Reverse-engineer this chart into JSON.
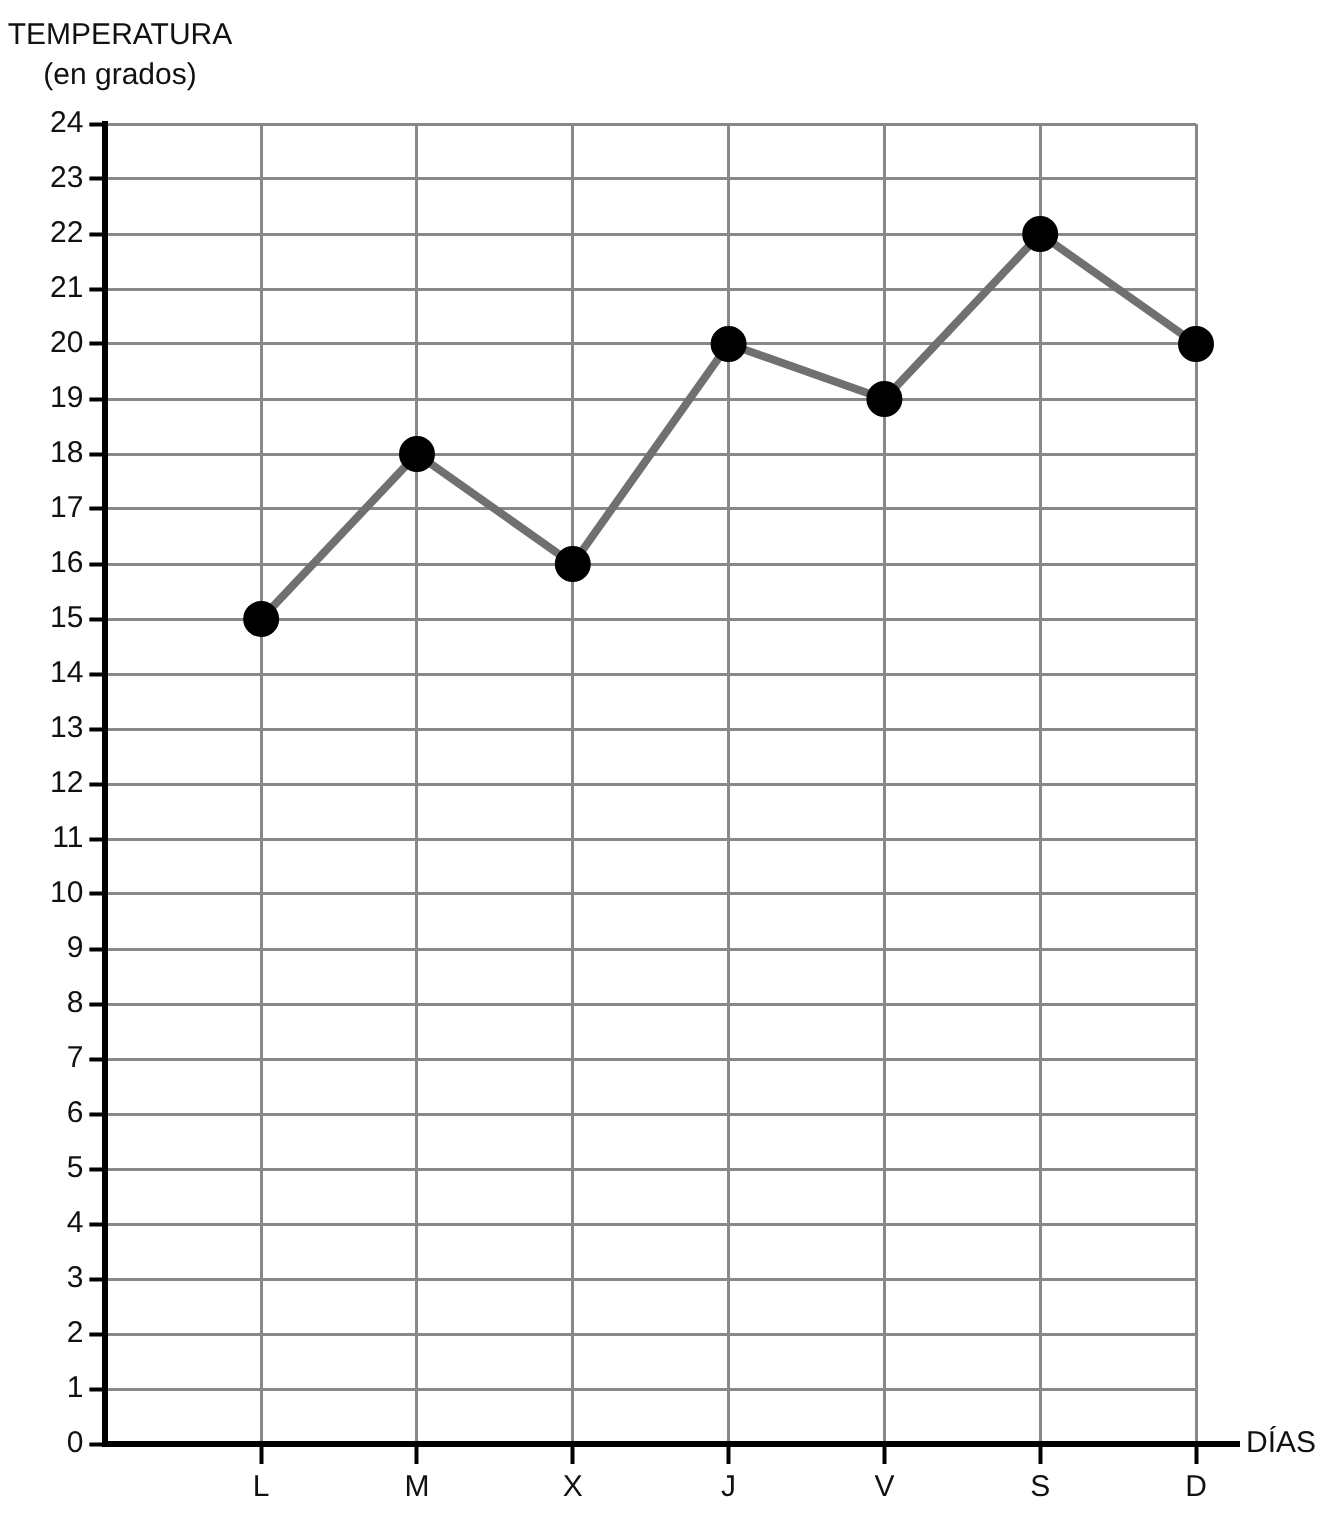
{
  "chart_data": {
    "type": "line",
    "xlabel": "DÍAS",
    "ylabel": "TEMPERATURA\n(en grados)",
    "categories": [
      "L",
      "M",
      "X",
      "J",
      "V",
      "S",
      "D"
    ],
    "values": [
      15,
      18,
      16,
      20,
      19,
      22,
      20
    ],
    "color": "#707070",
    "marker": "circle",
    "line_style": "solid",
    "ylim": [
      0,
      24
    ],
    "yticks": [
      0,
      1,
      2,
      3,
      4,
      5,
      6,
      7,
      8,
      9,
      10,
      11,
      12,
      13,
      14,
      15,
      16,
      17,
      18,
      19,
      20,
      21,
      22,
      23,
      24
    ],
    "grid": true
  }
}
